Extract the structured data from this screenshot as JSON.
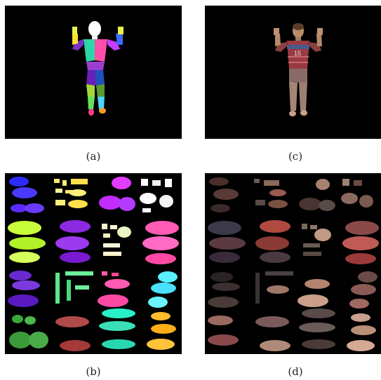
{
  "figure": {
    "panels": [
      {
        "id": "a",
        "caption": "(a)",
        "content": "segmented-body-parts"
      },
      {
        "id": "c",
        "caption": "(c)",
        "content": "textured-person-render"
      },
      {
        "id": "b",
        "caption": "(b)",
        "content": "segmented-texture-atlas"
      },
      {
        "id": "d",
        "caption": "(d)",
        "content": "rgb-texture-atlas"
      }
    ],
    "jersey_number": "15"
  },
  "colors": {
    "background": "#000000",
    "page": "#ffffff",
    "caption_text": "#222222"
  }
}
